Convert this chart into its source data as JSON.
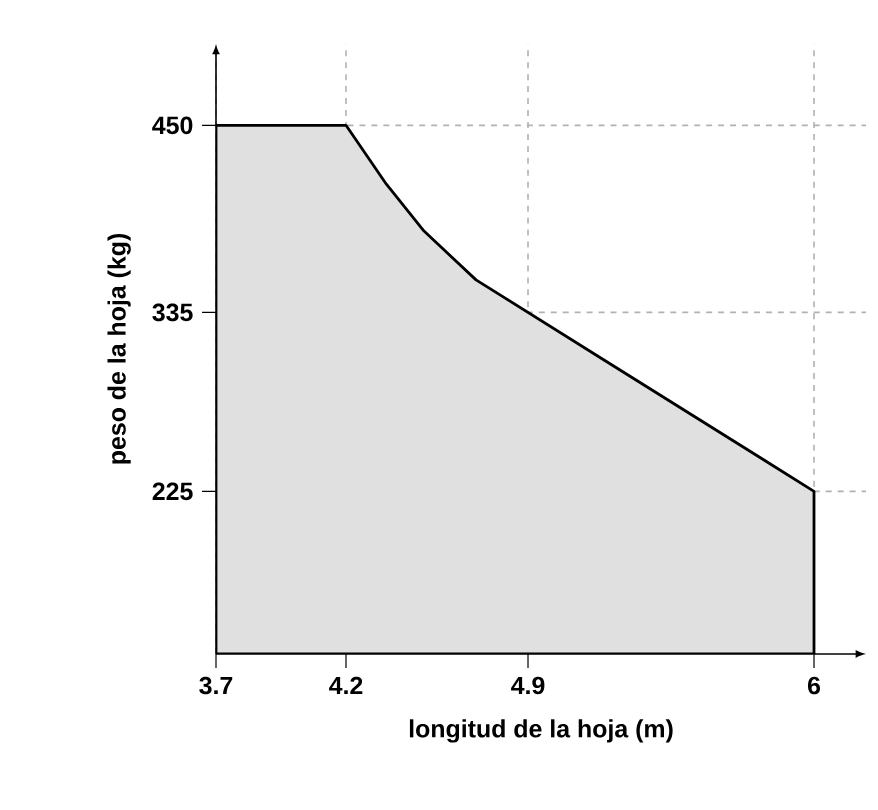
{
  "chart_data": {
    "type": "area",
    "xlabel": "longitud de la hoja (m)",
    "ylabel": "peso de la hoja (kg)",
    "x": [
      3.7,
      4.2,
      4.35,
      4.5,
      4.7,
      4.9,
      5.2,
      5.5,
      5.8,
      6
    ],
    "series": [
      {
        "color": "#e0e0e0",
        "values": [
          450,
          450,
          415,
          385,
          355,
          335,
          305,
          275,
          245,
          225
        ]
      }
    ],
    "xlim": [
      3.7,
      6.2
    ],
    "ylim": [
      125,
      500
    ],
    "xticks": [
      3.7,
      4.2,
      4.9,
      6
    ],
    "yticks": [
      225,
      335,
      450
    ],
    "grid": true,
    "line_style": "solid"
  }
}
